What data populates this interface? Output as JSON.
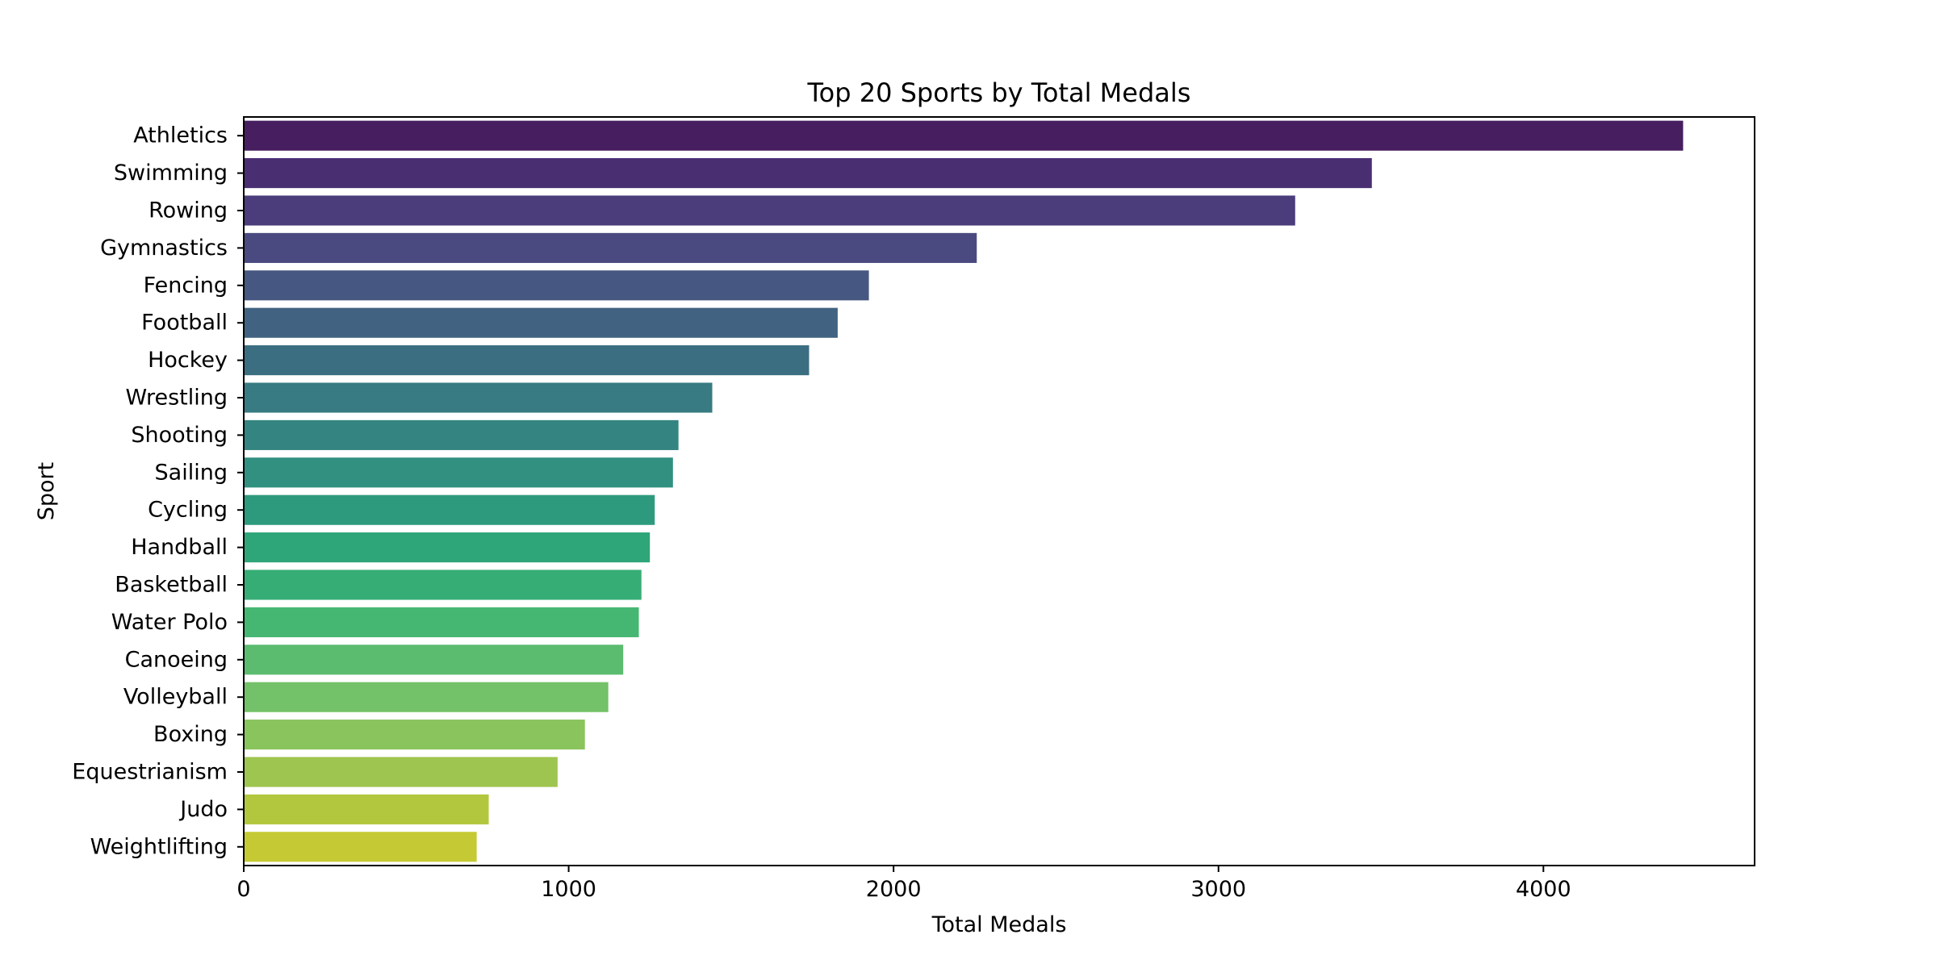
{
  "chart_data": {
    "type": "bar",
    "orientation": "horizontal",
    "title": "Top 20 Sports by Total Medals",
    "xlabel": "Total Medals",
    "ylabel": "Sport",
    "xlim": [
      0,
      4650
    ],
    "xticks": [
      0,
      1000,
      2000,
      3000,
      4000
    ],
    "grid": false,
    "legend": "none",
    "categories": [
      "Athletics",
      "Swimming",
      "Rowing",
      "Gymnastics",
      "Fencing",
      "Football",
      "Hockey",
      "Wrestling",
      "Shooting",
      "Sailing",
      "Cycling",
      "Handball",
      "Basketball",
      "Water Polo",
      "Canoeing",
      "Volleyball",
      "Boxing",
      "Equestrianism",
      "Judo",
      "Weightlifting"
    ],
    "values": [
      4430,
      3472,
      3236,
      2256,
      1924,
      1828,
      1740,
      1442,
      1338,
      1321,
      1265,
      1250,
      1224,
      1216,
      1168,
      1122,
      1050,
      966,
      754,
      717
    ],
    "colors": [
      "#471e5f",
      "#4a2e72",
      "#4b3c7b",
      "#4a4a80",
      "#465781",
      "#416381",
      "#3c6e82",
      "#387b82",
      "#348581",
      "#31907f",
      "#2e9a7d",
      "#2fa57a",
      "#37ad76",
      "#46b772",
      "#5bbc6f",
      "#73c168",
      "#89c45d",
      "#9ec54f",
      "#b3c73e",
      "#c5ca34"
    ]
  }
}
